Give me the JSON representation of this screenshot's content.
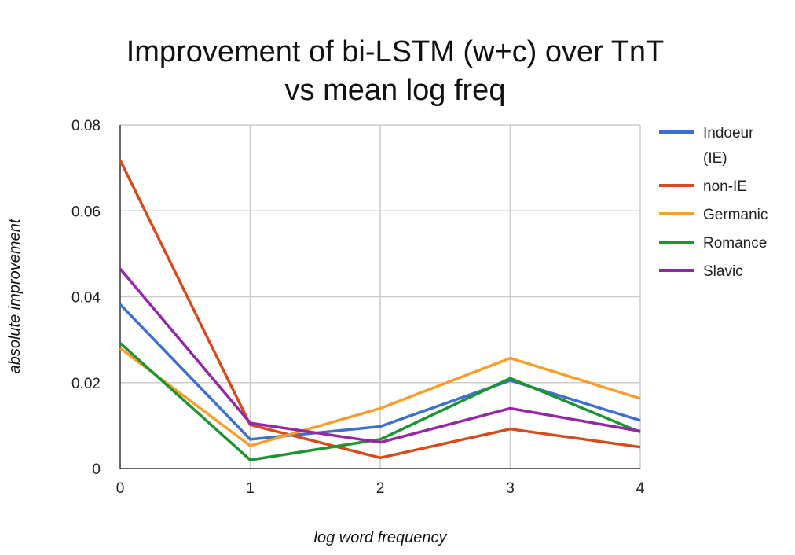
{
  "chart_data": {
    "type": "line",
    "title": [
      "Improvement of bi-LSTM (w+c) over TnT",
      "vs mean log freq"
    ],
    "xlabel": "log word frequency",
    "ylabel": "absolute improvement",
    "x": [
      0,
      1,
      2,
      3,
      4
    ],
    "x_tick_labels": [
      "0",
      "1",
      "2",
      "3",
      "4"
    ],
    "ylim": [
      0,
      0.08
    ],
    "y_ticks": [
      0,
      0.02,
      0.04,
      0.06,
      0.08
    ],
    "y_tick_labels": [
      "0",
      "0.02",
      "0.04",
      "0.06",
      "0.08"
    ],
    "grid": true,
    "legend_position": "right",
    "series": [
      {
        "name": [
          "Indoeur",
          "(IE)"
        ],
        "color": "#3d6fd1",
        "values": [
          0.0382,
          0.0068,
          0.0098,
          0.0205,
          0.0112
        ]
      },
      {
        "name": [
          "non-IE"
        ],
        "color": "#d84a1b",
        "values": [
          0.0718,
          0.0102,
          0.0025,
          0.0092,
          0.005
        ]
      },
      {
        "name": [
          "Germanic"
        ],
        "color": "#fa9d2a",
        "values": [
          0.028,
          0.0053,
          0.014,
          0.0257,
          0.0163
        ]
      },
      {
        "name": [
          "Romance"
        ],
        "color": "#1e9431",
        "values": [
          0.0292,
          0.002,
          0.0068,
          0.021,
          0.0085
        ]
      },
      {
        "name": [
          "Slavic"
        ],
        "color": "#9427a6",
        "values": [
          0.0465,
          0.0106,
          0.0061,
          0.014,
          0.0087
        ]
      }
    ]
  }
}
